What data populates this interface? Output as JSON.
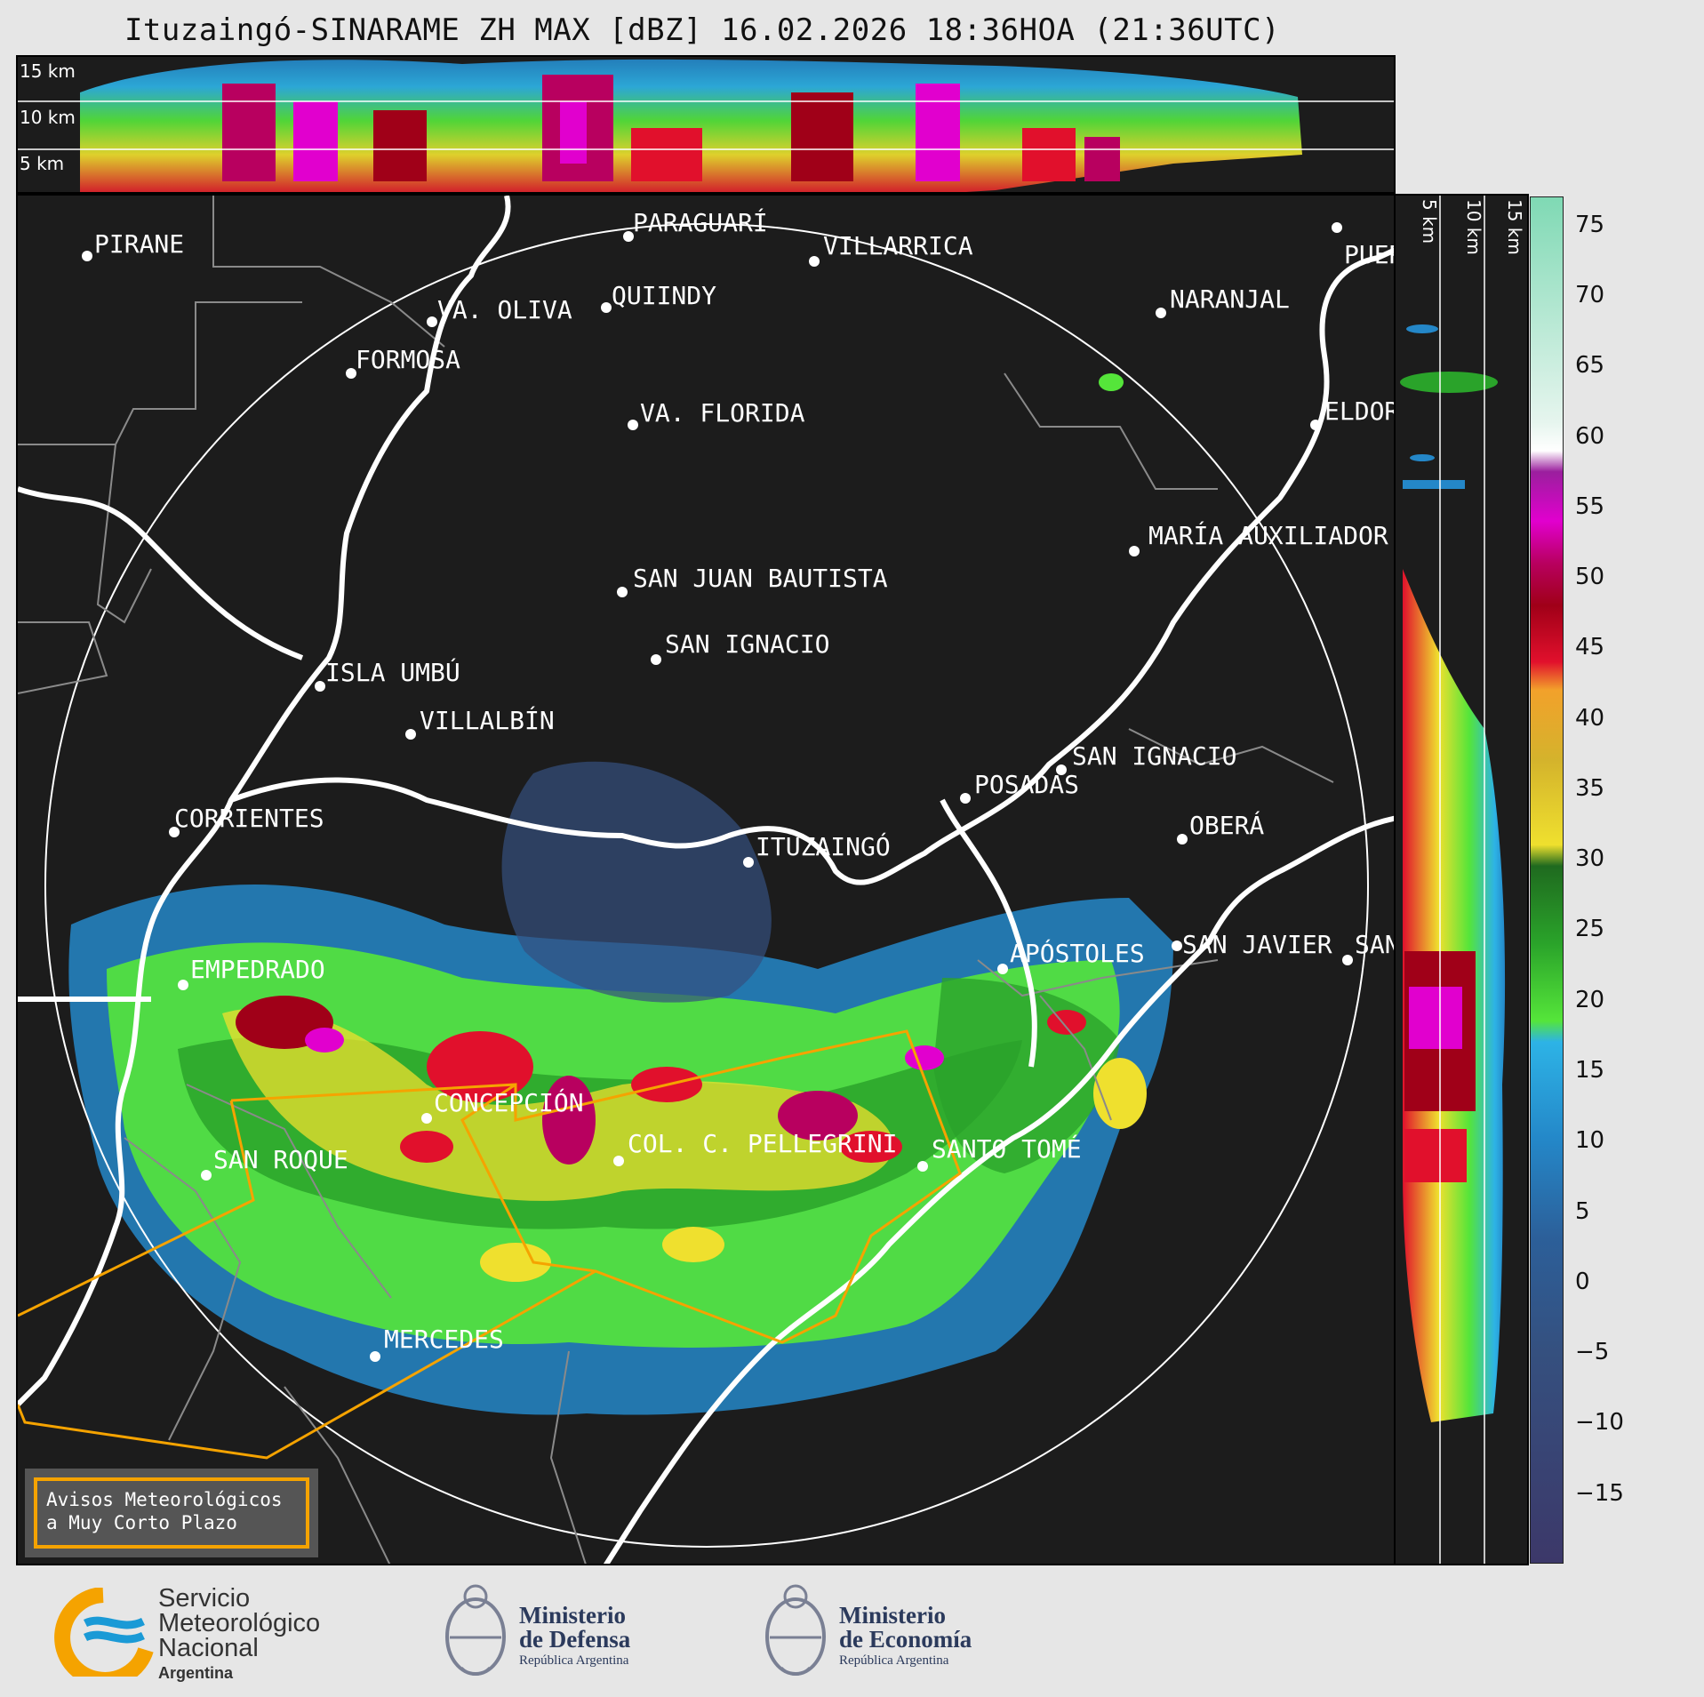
{
  "title": "Ituzaingó-SINARAME ZH MAX [dBZ] 16.02.2026 18:36HOA (21:36UTC)",
  "top_section": {
    "height_labels": [
      "15 km",
      "10 km",
      "5 km"
    ]
  },
  "side_section": {
    "height_labels": [
      "5 km",
      "10 km",
      "15 km"
    ]
  },
  "colorbar": {
    "unit": "dBZ",
    "ticks": [
      "75",
      "70",
      "65",
      "60",
      "55",
      "50",
      "45",
      "40",
      "35",
      "30",
      "25",
      "20",
      "15",
      "10",
      "5",
      "0",
      "−5",
      "−10",
      "−15"
    ],
    "stops": [
      {
        "value": 77,
        "color": "#7fd9b4"
      },
      {
        "value": 61,
        "color": "#e6f5ee"
      },
      {
        "value": 59,
        "color": "#ffffff"
      },
      {
        "value": 57.5,
        "color": "#9b1f9e"
      },
      {
        "value": 54,
        "color": "#e100ce"
      },
      {
        "value": 51,
        "color": "#b8005f"
      },
      {
        "value": 48,
        "color": "#a00018"
      },
      {
        "value": 44,
        "color": "#e1102c"
      },
      {
        "value": 42,
        "color": "#f2a12b"
      },
      {
        "value": 37,
        "color": "#d4b32c"
      },
      {
        "value": 31,
        "color": "#efe02e"
      },
      {
        "value": 29.5,
        "color": "#1f6a1f"
      },
      {
        "value": 24,
        "color": "#2aa32a"
      },
      {
        "value": 18.5,
        "color": "#55e53a"
      },
      {
        "value": 17,
        "color": "#2db3e6"
      },
      {
        "value": 10,
        "color": "#2487c8"
      },
      {
        "value": 3,
        "color": "#2c5f99"
      },
      {
        "value": -5,
        "color": "#35507f"
      },
      {
        "value": -20,
        "color": "#3c3869"
      }
    ]
  },
  "cities": [
    {
      "name": "PARAGUARÍ"
    },
    {
      "name": "PIRANE"
    },
    {
      "name": "VILLARRICA"
    },
    {
      "name": "VA. OLIVA"
    },
    {
      "name": "QUIINDY"
    },
    {
      "name": "NARANJAL"
    },
    {
      "name": "FORMOSA"
    },
    {
      "name": "PUER"
    },
    {
      "name": "VA. FLORIDA"
    },
    {
      "name": "ELDOR"
    },
    {
      "name": "MARÍA AUXILIADOR"
    },
    {
      "name": "SAN JUAN BAUTISTA"
    },
    {
      "name": "SAN IGNACIO"
    },
    {
      "name": "ISLA UMBÚ"
    },
    {
      "name": "VILLALBÍN"
    },
    {
      "name": "SAN IGNACIO"
    },
    {
      "name": "POSADAS"
    },
    {
      "name": "CORRIENTES"
    },
    {
      "name": "ITUZAINGÓ"
    },
    {
      "name": "OBERÁ"
    },
    {
      "name": "APÓSTOLES"
    },
    {
      "name": "SAN JAVIER"
    },
    {
      "name": "SAN"
    },
    {
      "name": "EMPEDRADO"
    },
    {
      "name": "CONCEPCIÓN"
    },
    {
      "name": "COL. C. PELLEGRINI"
    },
    {
      "name": "SAN ROQUE"
    },
    {
      "name": "SANTO TOMÉ"
    },
    {
      "name": "MERCEDES"
    }
  ],
  "warning_box": {
    "line1": "Avisos Meteorológicos",
    "line2": "a Muy Corto Plazo",
    "color": "#f5a300"
  },
  "footer": {
    "smn": {
      "line1": "Servicio",
      "line2": "Meteorológico",
      "line3": "Nacional",
      "line4": "Argentina"
    },
    "defensa": {
      "line1": "Ministerio",
      "line2": "de Defensa",
      "line3": "República Argentina"
    },
    "economia": {
      "line1": "Ministerio",
      "line2": "de Economía",
      "line3": "República Argentina"
    }
  }
}
